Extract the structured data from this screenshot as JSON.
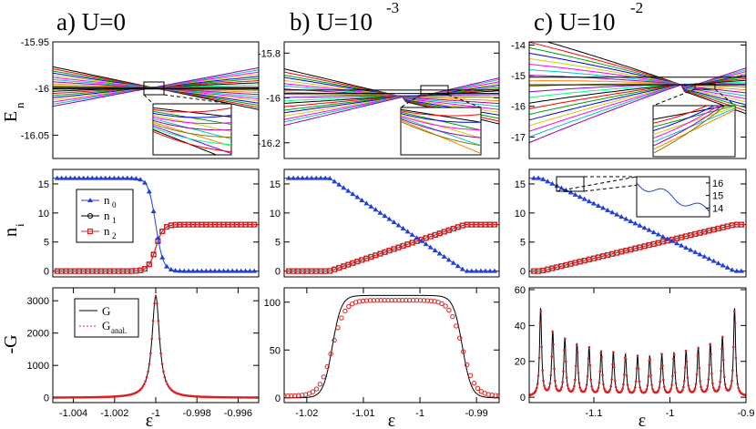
{
  "figure": {
    "titles": [
      "a)  U=0",
      "b)  U=10",
      "c)  U=10"
    ],
    "title_exponents": [
      "",
      "-3",
      "-2"
    ],
    "row_ylabels": {
      "top": "E",
      "top_sub": "n",
      "middle": "n",
      "middle_sub": "i",
      "bottom": "-G"
    },
    "xlabel": "ε"
  },
  "chart_data": [
    {
      "id": "a_top",
      "type": "line",
      "title": "a)  U=0",
      "ylabel": "En",
      "xlim": [
        -1.005,
        -0.995
      ],
      "ylim": [
        -16.075,
        -15.95
      ],
      "xticks": [],
      "yticks": [
        -15.95,
        -16,
        -16.05
      ],
      "ytick_labels": [
        "-15.95",
        "-16",
        "-16.05"
      ],
      "crossing": {
        "x": -1.0,
        "y": -15.999
      },
      "levels": 20,
      "inset": {
        "note": "zoom of avoided crossing"
      }
    },
    {
      "id": "a_mid",
      "type": "line",
      "ylabel": "ni",
      "xlim": [
        -1.005,
        -0.995
      ],
      "ylim": [
        -1,
        17.5
      ],
      "yticks": [
        0,
        5,
        10,
        15
      ],
      "ytick_labels": [
        "0",
        "5",
        "10",
        "15"
      ],
      "legend": [
        "n",
        "n",
        "n"
      ],
      "legend_subs": [
        "0",
        "1",
        "2"
      ],
      "series": [
        {
          "name": "n0",
          "color": "#1f3fd8",
          "marker": "triangle",
          "from": 16,
          "to": 0,
          "center": -1.0,
          "width": 0.00018
        },
        {
          "name": "n1",
          "color": "#000000",
          "marker": "circle",
          "from": 0,
          "to": 8,
          "center": -1.0,
          "width": 0.00018
        },
        {
          "name": "n2",
          "color": "#e02020",
          "marker": "square",
          "from": 0,
          "to": 8,
          "center": -1.0,
          "width": 0.00018
        }
      ]
    },
    {
      "id": "a_bot",
      "type": "line",
      "ylabel": "-G",
      "xlabel": "ε",
      "xlim": [
        -1.005,
        -0.995
      ],
      "ylim": [
        -150,
        3400
      ],
      "yticks": [
        0,
        1000,
        2000,
        3000
      ],
      "ytick_labels": [
        "0",
        "1000",
        "2000",
        "3000"
      ],
      "xticks": [
        -1.004,
        -1.002,
        -1,
        -0.998,
        -0.996
      ],
      "xtick_labels": [
        "-1.004",
        "-1.002",
        "-1",
        "-0.998",
        "-0.996"
      ],
      "legend": [
        "G",
        "G"
      ],
      "legend_subs": [
        "",
        "anal."
      ],
      "peak": {
        "x": -1.0,
        "height": 3150,
        "hwhm": 0.00022
      }
    },
    {
      "id": "b_top",
      "type": "line",
      "title": "b)  U=10",
      "title_exponent": "-3",
      "xlim": [
        -1.024,
        -0.986
      ],
      "ylim": [
        -16.27,
        -15.75
      ],
      "yticks": [
        -15.8,
        -16,
        -16.2
      ],
      "ytick_labels": [
        "-15.8",
        "-16",
        "-16.2"
      ],
      "levels": 20
    },
    {
      "id": "b_mid",
      "type": "line",
      "xlim": [
        -1.024,
        -0.986
      ],
      "ylim": [
        -1,
        17.5
      ],
      "yticks": [
        0,
        5,
        10,
        15
      ],
      "ytick_labels": [
        "0",
        "5",
        "10",
        "15"
      ],
      "series": [
        {
          "name": "n0",
          "color": "#1f3fd8",
          "from": 16,
          "to": 0,
          "x0": -1.016,
          "x1": -0.992
        },
        {
          "name": "n1",
          "color": "#000000",
          "from": 0,
          "to": 8,
          "x0": -1.016,
          "x1": -0.992
        },
        {
          "name": "n2",
          "color": "#e02020",
          "from": 0,
          "to": 8,
          "x0": -1.016,
          "x1": -0.992
        }
      ]
    },
    {
      "id": "b_bot",
      "type": "line",
      "xlabel": "ε",
      "xlim": [
        -1.024,
        -0.986
      ],
      "ylim": [
        -5,
        115
      ],
      "yticks": [
        0,
        50,
        100
      ],
      "ytick_labels": [
        "0",
        "50",
        "100"
      ],
      "xticks": [
        -1.02,
        -1.01,
        -1,
        -0.99
      ],
      "xtick_labels": [
        "-1.02",
        "-1.01",
        "-1",
        "-0.99"
      ],
      "plateau": {
        "x0": -1.0155,
        "x1": -0.9925,
        "height": 107,
        "anal_height": 100
      }
    },
    {
      "id": "c_top",
      "type": "line",
      "title": "c)  U=10",
      "title_exponent": "-2",
      "xlim": [
        -1.185,
        -0.9
      ],
      "ylim": [
        -17.7,
        -13.9
      ],
      "yticks": [
        -14,
        -15,
        -16,
        -17
      ],
      "ytick_labels": [
        "-14",
        "-15",
        "-16",
        "-17"
      ],
      "levels": 20
    },
    {
      "id": "c_mid",
      "type": "line",
      "xlim": [
        -1.185,
        -0.9
      ],
      "ylim": [
        -1,
        17.5
      ],
      "yticks": [
        0,
        5,
        10,
        15
      ],
      "ytick_labels": [
        "0",
        "5",
        "10",
        "15"
      ],
      "inset": {
        "yticks": [
          14,
          15,
          16
        ],
        "ytick_labels": [
          "14",
          "15",
          "16"
        ]
      },
      "series": [
        {
          "name": "n0",
          "color": "#1f3fd8",
          "from": 16,
          "to": 0,
          "x0": -1.17,
          "x1": -0.915
        },
        {
          "name": "n1",
          "color": "#000000",
          "from": 0,
          "to": 8,
          "x0": -1.17,
          "x1": -0.915
        },
        {
          "name": "n2",
          "color": "#e02020",
          "from": 0,
          "to": 8,
          "x0": -1.17,
          "x1": -0.915
        }
      ]
    },
    {
      "id": "c_bot",
      "type": "line",
      "xlabel": "ε",
      "xlim": [
        -1.185,
        -0.9
      ],
      "ylim": [
        -3,
        61
      ],
      "yticks": [
        0,
        20,
        40,
        60
      ],
      "ytick_labels": [
        "0",
        "20",
        "40",
        "60"
      ],
      "xticks": [
        -1.1,
        -1,
        -0.9
      ],
      "xtick_labels": [
        "-1.1",
        "-1",
        "-0.9"
      ],
      "peaks": {
        "count": 17,
        "x0": -1.17,
        "x1": -0.915,
        "heights": [
          49,
          36,
          32,
          29,
          27,
          25,
          24,
          23,
          22,
          22,
          23,
          24,
          25,
          27,
          29,
          33,
          49
        ]
      }
    }
  ],
  "colors": {
    "n0": "#1f3fd8",
    "n1": "#000000",
    "n2": "#e02020",
    "levels": [
      "#000000",
      "#ff0000",
      "#00a000",
      "#0000ff",
      "#d0d000",
      "#ff00ff",
      "#00c8c8",
      "#a000a0",
      "#ff8000",
      "#808000",
      "#8000ff",
      "#00ff80"
    ]
  }
}
